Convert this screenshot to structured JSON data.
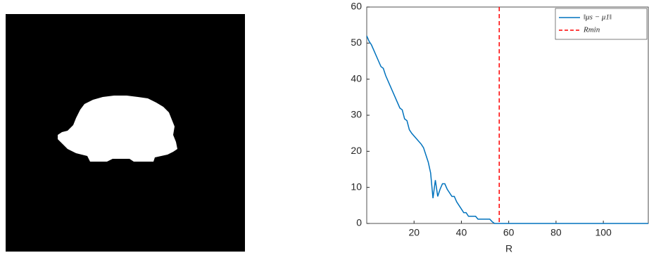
{
  "chart_data": {
    "type": "line",
    "x_label": "R",
    "x": [
      0,
      1,
      2,
      3,
      5,
      6,
      7,
      8,
      10,
      12,
      14,
      15,
      16,
      17,
      18,
      19,
      21,
      23,
      24,
      25,
      26,
      27,
      28,
      29,
      30,
      31,
      32,
      33,
      34,
      35,
      36,
      37,
      38,
      39,
      40,
      41,
      42,
      43,
      44,
      46,
      47,
      48,
      52,
      53,
      54,
      119
    ],
    "series": [
      {
        "name": "‖μs − μ1‖",
        "color": "#0072bd",
        "values": [
          52,
          50.5,
          49.5,
          48,
          45,
          43.5,
          43,
          41,
          38,
          35,
          32,
          31.5,
          29,
          28.5,
          26,
          25,
          23.5,
          22,
          21,
          19,
          17,
          14,
          7,
          12,
          7.5,
          9.5,
          11,
          11,
          9.5,
          8.5,
          7.5,
          7.5,
          6,
          5,
          4,
          3,
          3,
          2,
          2,
          2,
          1.2,
          1.2,
          1.2,
          0.5,
          0,
          0
        ]
      }
    ],
    "vlines": [
      {
        "name": "Rmin",
        "x": 56,
        "color": "#ff0000"
      }
    ],
    "xlim": [
      0,
      119
    ],
    "xticks": [
      20,
      40,
      60,
      80,
      100
    ],
    "ylim": [
      0,
      60
    ],
    "yticks": [
      0,
      10,
      20,
      30,
      40,
      50,
      60
    ],
    "legend": "top-right"
  }
}
